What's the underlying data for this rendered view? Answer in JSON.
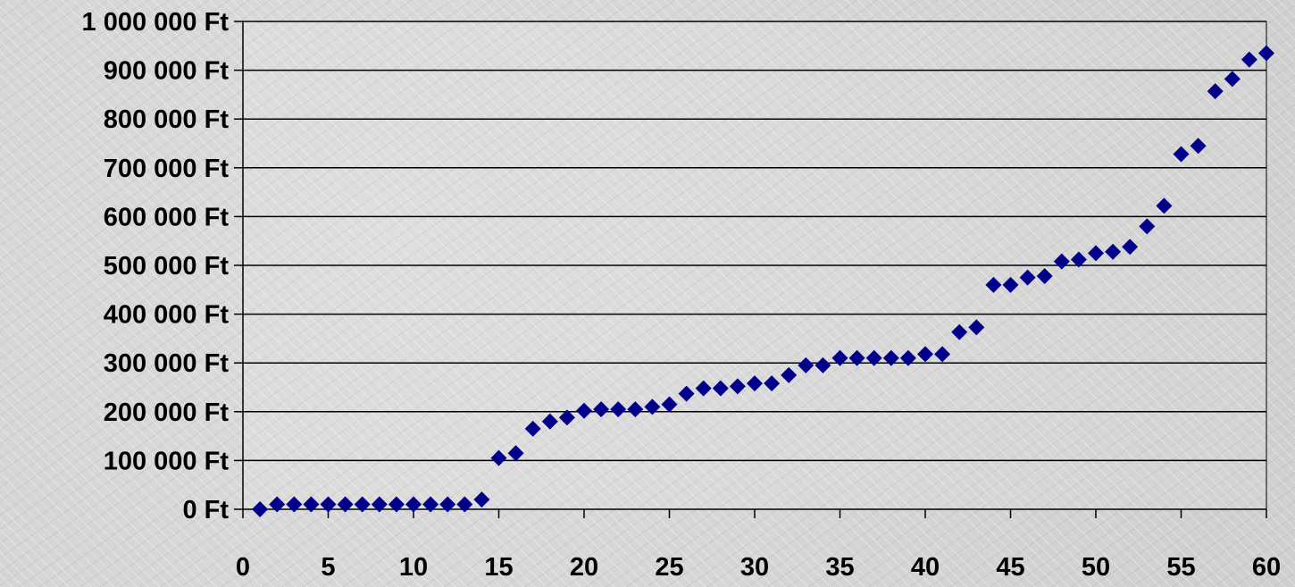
{
  "chart_data": {
    "type": "scatter",
    "title": "",
    "xlabel": "",
    "ylabel": "",
    "xlim": [
      0,
      60
    ],
    "ylim": [
      0,
      1000000
    ],
    "grid": "horizontal",
    "y_ticks": [
      {
        "value": 0,
        "label": "0 Ft"
      },
      {
        "value": 100000,
        "label": "100 000 Ft"
      },
      {
        "value": 200000,
        "label": "200 000 Ft"
      },
      {
        "value": 300000,
        "label": "300 000 Ft"
      },
      {
        "value": 400000,
        "label": "400 000 Ft"
      },
      {
        "value": 500000,
        "label": "500 000 Ft"
      },
      {
        "value": 600000,
        "label": "600 000 Ft"
      },
      {
        "value": 700000,
        "label": "700 000 Ft"
      },
      {
        "value": 800000,
        "label": "800 000 Ft"
      },
      {
        "value": 900000,
        "label": "900 000 Ft"
      },
      {
        "value": 1000000,
        "label": "1 000 000 Ft"
      }
    ],
    "x_ticks": [
      {
        "value": 0,
        "label": "0"
      },
      {
        "value": 5,
        "label": "5"
      },
      {
        "value": 10,
        "label": "10"
      },
      {
        "value": 15,
        "label": "15"
      },
      {
        "value": 20,
        "label": "20"
      },
      {
        "value": 25,
        "label": "25"
      },
      {
        "value": 30,
        "label": "30"
      },
      {
        "value": 35,
        "label": "35"
      },
      {
        "value": 40,
        "label": "40"
      },
      {
        "value": 45,
        "label": "45"
      },
      {
        "value": 50,
        "label": "50"
      },
      {
        "value": 55,
        "label": "55"
      },
      {
        "value": 60,
        "label": "60"
      }
    ],
    "series": [
      {
        "marker": "diamond",
        "color": "#00008b",
        "x": [
          1,
          2,
          3,
          4,
          5,
          6,
          7,
          8,
          9,
          10,
          11,
          12,
          13,
          14,
          15,
          16,
          17,
          18,
          19,
          20,
          21,
          22,
          23,
          24,
          25,
          26,
          27,
          28,
          29,
          30,
          31,
          32,
          33,
          34,
          35,
          36,
          37,
          38,
          39,
          40,
          41,
          42,
          43,
          44,
          45,
          46,
          47,
          48,
          49,
          50,
          51,
          52,
          53,
          54,
          55,
          56,
          57,
          58,
          59,
          60
        ],
        "y": [
          0,
          10000,
          10000,
          10000,
          10000,
          10000,
          10000,
          10000,
          10000,
          10000,
          10000,
          10000,
          10000,
          20000,
          105000,
          115000,
          165000,
          180000,
          188000,
          202000,
          205000,
          205000,
          205000,
          210000,
          215000,
          237000,
          248000,
          248000,
          252000,
          258000,
          258000,
          275000,
          295000,
          295000,
          310000,
          310000,
          310000,
          310000,
          310000,
          318000,
          318000,
          363000,
          373000,
          460000,
          460000,
          475000,
          478000,
          508000,
          512000,
          525000,
          528000,
          538000,
          580000,
          622000,
          728000,
          745000,
          857000,
          882000,
          922000,
          935000
        ]
      }
    ]
  }
}
